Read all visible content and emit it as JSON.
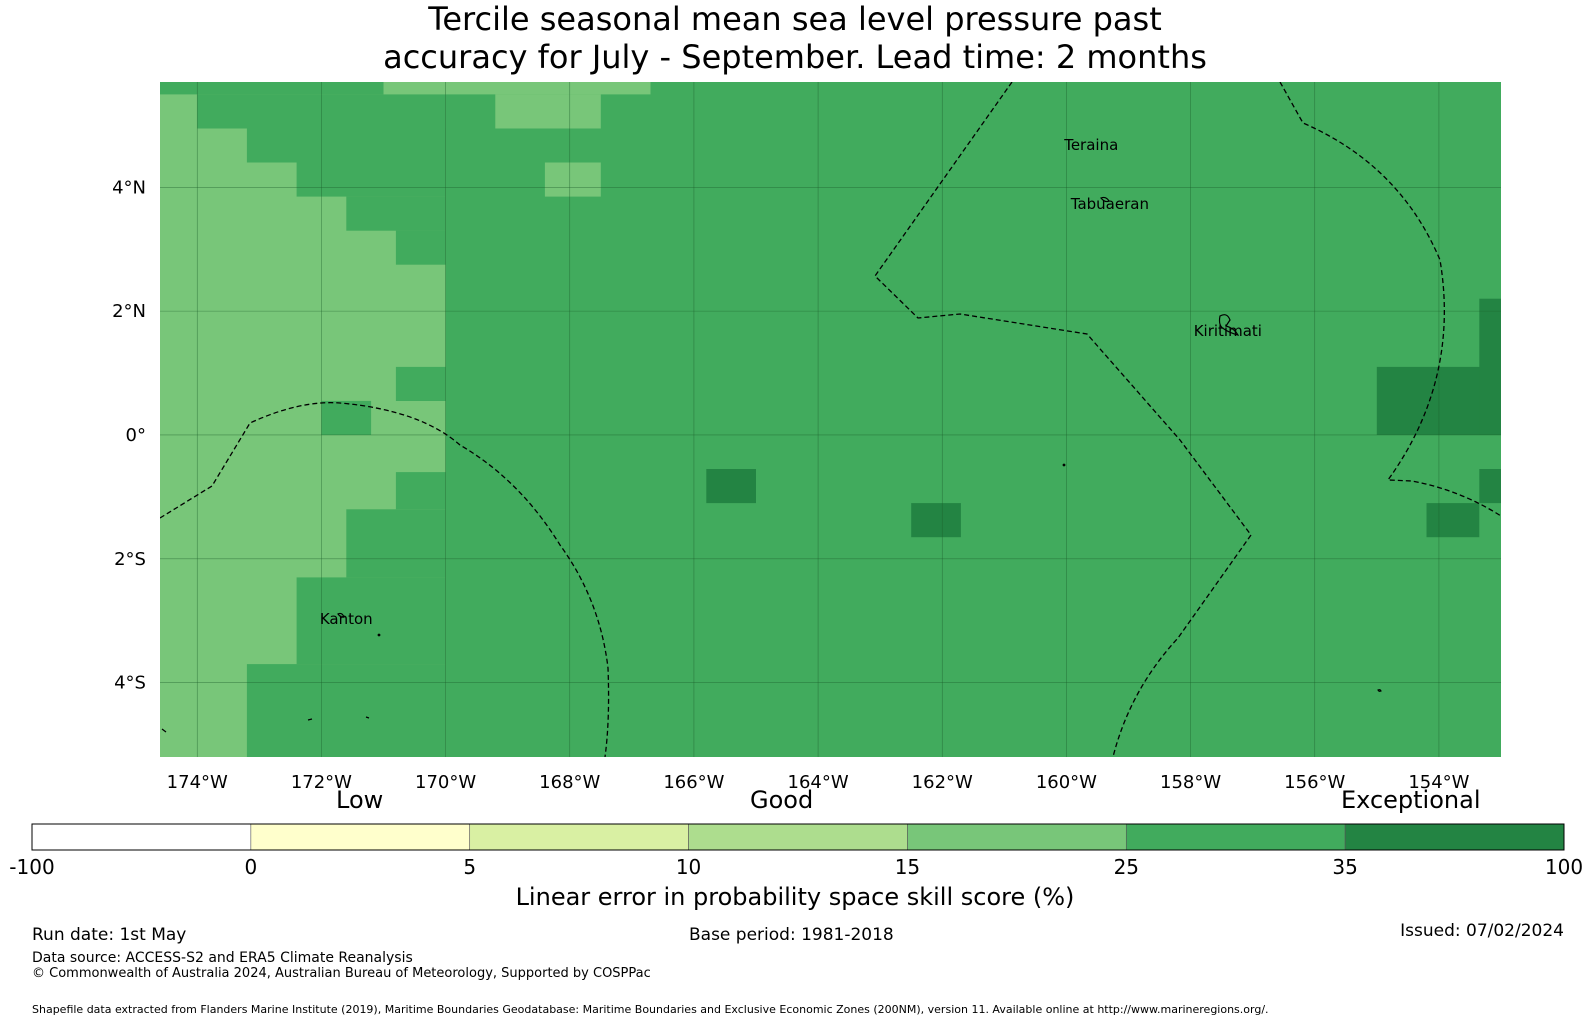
{
  "title": {
    "line1": "Tercile seasonal mean sea level pressure past",
    "line2": "accuracy for July - September. Lead time: 2 months"
  },
  "map": {
    "lon_range": [
      -174.6,
      -153.0
    ],
    "lat_range": [
      -5.2,
      5.7
    ],
    "x_ticks": [
      {
        "value": -174,
        "label": "174°W"
      },
      {
        "value": -172,
        "label": "172°W"
      },
      {
        "value": -170,
        "label": "170°W"
      },
      {
        "value": -168,
        "label": "168°W"
      },
      {
        "value": -166,
        "label": "166°W"
      },
      {
        "value": -164,
        "label": "164°W"
      },
      {
        "value": -162,
        "label": "162°W"
      },
      {
        "value": -160,
        "label": "160°W"
      },
      {
        "value": -158,
        "label": "158°W"
      },
      {
        "value": -156,
        "label": "156°W"
      },
      {
        "value": -154,
        "label": "154°W"
      }
    ],
    "y_ticks": [
      {
        "value": 4,
        "label": "4°N"
      },
      {
        "value": 2,
        "label": "2°N"
      },
      {
        "value": 0,
        "label": "0°"
      },
      {
        "value": -2,
        "label": "2°S"
      },
      {
        "value": -4,
        "label": "4°S"
      }
    ],
    "grid": true,
    "place_labels": [
      {
        "name": "Teraina",
        "lon": -159.6,
        "lat": 4.6
      },
      {
        "name": "Tabuaeran",
        "lon": -159.3,
        "lat": 3.65
      },
      {
        "name": "Kiritimati",
        "lon": -157.4,
        "lat": 1.6
      },
      {
        "name": "Kanton",
        "lon": -171.6,
        "lat": -3.05
      }
    ],
    "default_level": "25-35",
    "skill_regions": [
      {
        "level": "15-25",
        "lon": [
          -174.6,
          -170.0
        ],
        "lat": [
          -5.2,
          5.7
        ],
        "note": "western light band"
      },
      {
        "level": "25-35",
        "lon": [
          -173.2,
          -170.0
        ],
        "lat": [
          -5.2,
          -3.7
        ]
      },
      {
        "level": "25-35",
        "lon": [
          -172.4,
          -170.0
        ],
        "lat": [
          -3.7,
          -2.3
        ]
      },
      {
        "level": "25-35",
        "lon": [
          -171.6,
          -170.0
        ],
        "lat": [
          -2.3,
          -1.2
        ]
      },
      {
        "level": "25-35",
        "lon": [
          -170.8,
          -170.0
        ],
        "lat": [
          -1.2,
          -0.6
        ]
      },
      {
        "level": "25-35",
        "lon": [
          -172.0,
          -171.2
        ],
        "lat": [
          0.0,
          0.55
        ]
      },
      {
        "level": "25-35",
        "lon": [
          -170.8,
          -170.0
        ],
        "lat": [
          0.55,
          1.1
        ]
      },
      {
        "level": "25-35",
        "lon": [
          -170.8,
          -170.0
        ],
        "lat": [
          2.75,
          3.3
        ]
      },
      {
        "level": "25-35",
        "lon": [
          -171.6,
          -170.0
        ],
        "lat": [
          3.3,
          3.85
        ]
      },
      {
        "level": "25-35",
        "lon": [
          -172.4,
          -170.0
        ],
        "lat": [
          3.85,
          4.4
        ]
      },
      {
        "level": "25-35",
        "lon": [
          -173.2,
          -170.0
        ],
        "lat": [
          4.4,
          4.95
        ]
      },
      {
        "level": "25-35",
        "lon": [
          -174.0,
          -170.0
        ],
        "lat": [
          4.95,
          5.5
        ]
      },
      {
        "level": "25-35",
        "lon": [
          -174.6,
          -171.0
        ],
        "lat": [
          5.5,
          5.7
        ]
      },
      {
        "level": "15-25",
        "lon": [
          -169.2,
          -167.5
        ],
        "lat": [
          4.95,
          5.5
        ]
      },
      {
        "level": "15-25",
        "lon": [
          -170.0,
          -166.7
        ],
        "lat": [
          5.5,
          5.7
        ]
      },
      {
        "level": "15-25",
        "lon": [
          -168.4,
          -167.5
        ],
        "lat": [
          3.85,
          4.4
        ]
      },
      {
        "level": "35-100",
        "lon": [
          -165.8,
          -165.0
        ],
        "lat": [
          -1.1,
          -0.55
        ]
      },
      {
        "level": "35-100",
        "lon": [
          -162.5,
          -161.7
        ],
        "lat": [
          -1.65,
          -1.1
        ]
      },
      {
        "level": "35-100",
        "lon": [
          -155.0,
          -153.0
        ],
        "lat": [
          0.0,
          1.1
        ]
      },
      {
        "level": "35-100",
        "lon": [
          -153.35,
          -153.0
        ],
        "lat": [
          0.0,
          2.2
        ]
      },
      {
        "level": "35-100",
        "lon": [
          -154.2,
          -153.35
        ],
        "lat": [
          -1.65,
          -1.1
        ]
      },
      {
        "level": "35-100",
        "lon": [
          -153.35,
          -153.0
        ],
        "lat": [
          -1.1,
          -0.55
        ]
      }
    ]
  },
  "colorbar": {
    "words": {
      "low": "Low",
      "good": "Good",
      "exceptional": "Exceptional"
    },
    "ticks": [
      "-100",
      "0",
      "5",
      "10",
      "15",
      "25",
      "35",
      "100"
    ],
    "levels": [
      {
        "range": "-100-0",
        "color": "#ffffff"
      },
      {
        "range": "0-5",
        "color": "#ffffcc"
      },
      {
        "range": "5-10",
        "color": "#d9f0a3"
      },
      {
        "range": "10-15",
        "color": "#addd8e"
      },
      {
        "range": "15-25",
        "color": "#78c679"
      },
      {
        "range": "25-35",
        "color": "#41ab5d"
      },
      {
        "range": "35-100",
        "color": "#238443"
      }
    ],
    "label": "Linear error in probability space skill score (%)"
  },
  "footer": {
    "run_date": "Run date: 1st May",
    "base_period": "Base period: 1981-2018",
    "issued": "Issued: 07/02/2024",
    "data_source": "Data source: ACCESS-S2 and ERA5 Climate Reanalysis",
    "copyright": "© Commonwealth of Australia 2024, Australian Bureau of Meteorology, Supported by COSPPac",
    "shapefile": "Shapefile data extracted from Flanders Marine Institute (2019), Maritime Boundaries Geodatabase: Maritime Boundaries and Exclusive Economic Zones (200NM), version 11. Available online at http://www.marineregions.org/."
  }
}
